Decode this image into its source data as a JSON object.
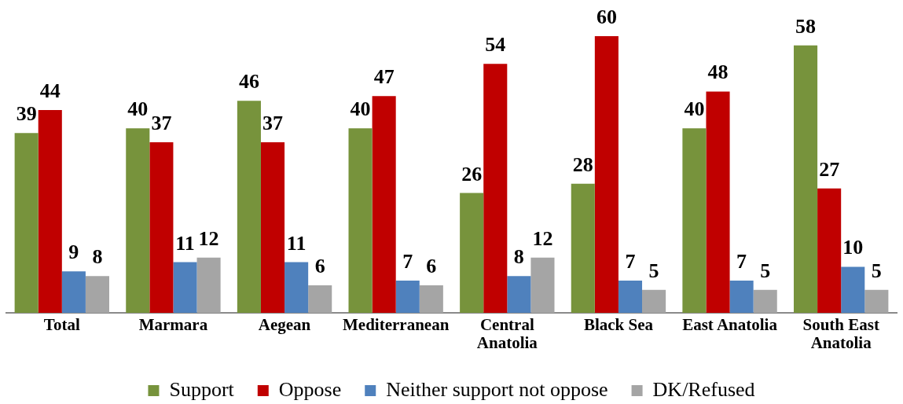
{
  "chart_data": {
    "type": "bar",
    "categories": [
      "Total",
      "Marmara",
      "Aegean",
      "Mediterranean",
      "Central Anatolia",
      "Black Sea",
      "East Anatolia",
      "South East Anatolia"
    ],
    "series": [
      {
        "name": "Support",
        "color": "#77933c",
        "values": [
          39,
          40,
          46,
          40,
          26,
          28,
          40,
          58
        ]
      },
      {
        "name": "Oppose",
        "color": "#c00000",
        "values": [
          44,
          37,
          37,
          47,
          54,
          60,
          48,
          27
        ]
      },
      {
        "name": "Neither support not oppose",
        "color": "#4f81bd",
        "values": [
          9,
          11,
          11,
          7,
          8,
          7,
          7,
          10
        ]
      },
      {
        "name": "DK/Refused",
        "color": "#a5a5a5",
        "values": [
          8,
          12,
          6,
          6,
          12,
          5,
          5,
          5
        ]
      }
    ],
    "data_labels": true,
    "legend": "bottom",
    "tick_labels": "x"
  }
}
